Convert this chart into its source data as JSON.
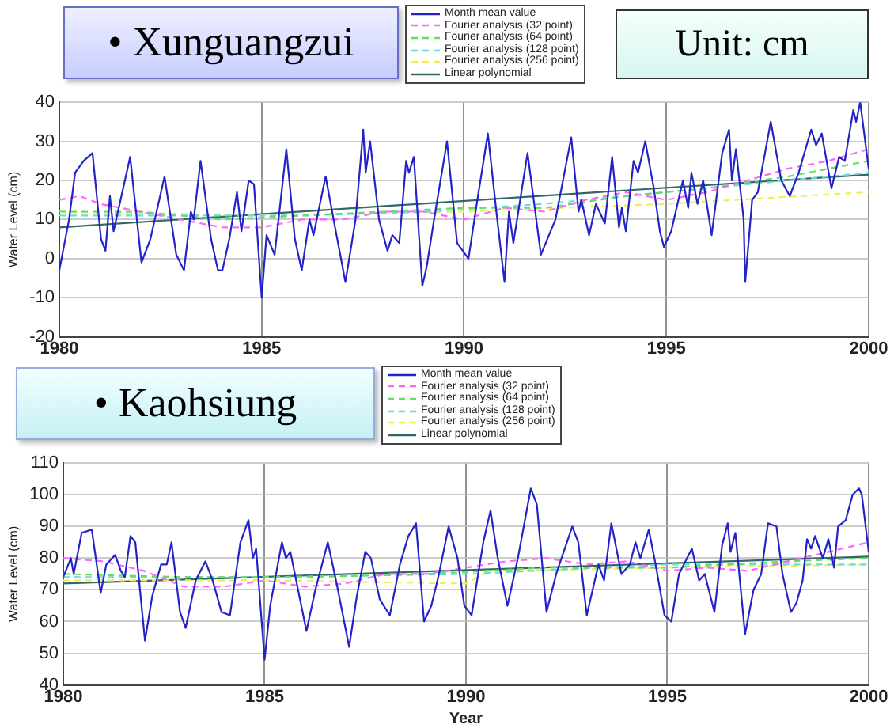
{
  "chart_data": [
    {
      "type": "line",
      "title": "• Xunguangzui",
      "annotations": [
        "Unit: cm"
      ],
      "ylabel": "Water Level (cm)",
      "xlim": [
        1980,
        2000
      ],
      "xticks": [
        1980,
        1985,
        1990,
        1995,
        2000
      ],
      "ylim": [
        -20,
        40
      ],
      "yticks": [
        -20,
        -10,
        0,
        10,
        20,
        30,
        40
      ],
      "grid": true,
      "legend": "top",
      "marker": "none",
      "series": [
        {
          "name": "Month mean value",
          "color": "#2323c8",
          "line_style": "solid",
          "x": [
            1980,
            1980.24,
            1980.39,
            1980.6,
            1980.82,
            1981.03,
            1981.14,
            1981.25,
            1981.34,
            1981.75,
            1982.03,
            1982.25,
            1982.6,
            1982.89,
            1983.08,
            1983.25,
            1983.32,
            1983.49,
            1983.75,
            1983.92,
            1984.03,
            1984.2,
            1984.39,
            1984.5,
            1984.68,
            1984.81,
            1985,
            1985.12,
            1985.32,
            1985.61,
            1985.82,
            1985.99,
            1986.18,
            1986.28,
            1986.58,
            1986.85,
            1987.07,
            1987.32,
            1987.51,
            1987.57,
            1987.68,
            1987.9,
            1988.11,
            1988.23,
            1988.4,
            1988.57,
            1988.64,
            1988.76,
            1988.97,
            1989.08,
            1989.26,
            1989.58,
            1989.83,
            1990.11,
            1990.33,
            1990.59,
            1990.8,
            1991,
            1991.11,
            1991.22,
            1991.57,
            1991.9,
            1992.26,
            1992.65,
            1992.83,
            1992.9,
            1993.09,
            1993.26,
            1993.48,
            1993.66,
            1993.83,
            1993.9,
            1994,
            1994.19,
            1994.3,
            1994.48,
            1994.69,
            1994.84,
            1994.94,
            1995.12,
            1995.41,
            1995.54,
            1995.62,
            1995.77,
            1995.91,
            1996.12,
            1996.38,
            1996.55,
            1996.62,
            1996.72,
            1996.91,
            1996.95,
            1997.12,
            1997.26,
            1997.58,
            1997.84,
            1998.05,
            1998.27,
            1998.58,
            1998.7,
            1998.84,
            1999.08,
            1999.27,
            1999.41,
            1999.62,
            1999.69,
            1999.79,
            2000
          ],
          "values": [
            -3,
            10,
            22,
            25,
            27,
            5,
            2,
            16,
            7,
            26,
            -1,
            5,
            21,
            1,
            -3,
            12,
            10,
            25,
            5,
            -3,
            -3,
            5,
            17,
            7,
            20,
            19,
            -10,
            6,
            1,
            28,
            5,
            -3,
            10,
            6,
            21,
            6,
            -6,
            10,
            33,
            22,
            30,
            10,
            2,
            6,
            4,
            25,
            22,
            26,
            -7,
            -2,
            10,
            30,
            4,
            0,
            15,
            32,
            12,
            -6,
            12,
            4,
            27,
            1,
            10,
            31,
            12,
            15,
            6,
            14,
            9,
            26,
            8,
            13,
            7,
            25,
            22,
            30,
            18,
            7,
            3,
            7,
            20,
            13,
            22,
            14,
            20,
            6,
            27,
            33,
            20,
            28,
            10,
            -6,
            15,
            17,
            35,
            20,
            16,
            22,
            33,
            29,
            32,
            18,
            26,
            25,
            38,
            35,
            40,
            23
          ]
        },
        {
          "name": "Fourier analysis (32 point)",
          "color": "#ff66ff",
          "line_style": "dashed",
          "x": [
            1980,
            1980.5,
            1981,
            1982,
            1983,
            1984,
            1985,
            1986,
            1987,
            1988,
            1989,
            1990,
            1991,
            1992,
            1993,
            1994,
            1995,
            1996,
            1997,
            1998,
            1999,
            2000
          ],
          "values": [
            15,
            16,
            14,
            12,
            10,
            8,
            8,
            10,
            10,
            12,
            12,
            10,
            13,
            12,
            15,
            17,
            15,
            17,
            20,
            23,
            25,
            28
          ]
        },
        {
          "name": "Fourier analysis (64 point)",
          "color": "#66dd66",
          "line_style": "dashed",
          "x": [
            1980,
            1982,
            1984,
            1986,
            1988,
            1990,
            1992,
            1994,
            1996,
            1998,
            2000
          ],
          "values": [
            12,
            12,
            10,
            11,
            12,
            13,
            13,
            16,
            18,
            21,
            25
          ]
        },
        {
          "name": "Fourier analysis (128 point)",
          "color": "#66dddd",
          "line_style": "dashed",
          "x": [
            1980,
            1983,
            1986,
            1989,
            1992,
            1995,
            1998,
            2000
          ],
          "values": [
            11,
            11,
            11,
            12,
            14,
            17,
            20,
            22
          ]
        },
        {
          "name": "Fourier analysis (256 point)",
          "color": "#eeee55",
          "line_style": "dashed",
          "x": [
            1980,
            1985,
            1990,
            1995,
            2000
          ],
          "values": [
            12,
            11,
            12,
            14,
            17
          ]
        },
        {
          "name": "Linear polynomial",
          "color": "#336666",
          "line_style": "solid",
          "x": [
            1980,
            2000
          ],
          "values": [
            8,
            21.5
          ]
        }
      ]
    },
    {
      "type": "line",
      "title": "• Kaohsiung",
      "xlabel": "Year",
      "ylabel": "Water Level (cm)",
      "xlim": [
        1980,
        2000
      ],
      "xticks": [
        1980,
        1985,
        1990,
        1995,
        2000
      ],
      "ylim": [
        40,
        110
      ],
      "yticks": [
        40,
        50,
        60,
        70,
        80,
        90,
        100,
        110
      ],
      "grid": true,
      "legend": "top",
      "marker": "none",
      "series": [
        {
          "name": "Month mean value",
          "color": "#2323c8",
          "line_style": "solid",
          "x": [
            1980,
            1980.19,
            1980.26,
            1980.46,
            1980.71,
            1980.93,
            1981.07,
            1981.29,
            1981.43,
            1981.53,
            1981.67,
            1981.79,
            1982.03,
            1982.21,
            1982.43,
            1982.57,
            1982.69,
            1982.9,
            1983.04,
            1983.29,
            1983.53,
            1983.71,
            1983.93,
            1984.14,
            1984.4,
            1984.6,
            1984.71,
            1984.79,
            1985,
            1985.14,
            1985.43,
            1985.53,
            1985.64,
            1986.04,
            1986.26,
            1986.57,
            1986.79,
            1987.1,
            1987.29,
            1987.5,
            1987.64,
            1987.86,
            1988.11,
            1988.36,
            1988.57,
            1988.76,
            1988.96,
            1989.14,
            1989.33,
            1989.57,
            1989.79,
            1989.96,
            1990.14,
            1990.43,
            1990.61,
            1990.79,
            1991.03,
            1991.29,
            1991.61,
            1991.76,
            1992,
            1992.24,
            1992.64,
            1992.79,
            1993,
            1993.29,
            1993.43,
            1993.61,
            1993.86,
            1994.07,
            1994.21,
            1994.33,
            1994.54,
            1994.71,
            1994.93,
            1995.1,
            1995.29,
            1995.61,
            1995.79,
            1995.93,
            1996.17,
            1996.36,
            1996.5,
            1996.57,
            1996.69,
            1996.93,
            1997.14,
            1997.33,
            1997.5,
            1997.71,
            1997.86,
            1998.07,
            1998.21,
            1998.36,
            1998.47,
            1998.57,
            1998.67,
            1998.86,
            1999,
            1999.14,
            1999.24,
            1999.43,
            1999.6,
            1999.76,
            1999.83,
            2000
          ],
          "values": [
            74,
            80,
            75,
            88,
            89,
            69,
            78,
            81,
            76,
            74,
            87,
            85,
            54,
            68,
            78,
            78,
            85,
            63,
            58,
            73,
            79,
            73,
            63,
            62,
            85,
            92,
            80,
            83,
            48,
            65,
            85,
            80,
            82,
            57,
            70,
            85,
            72,
            52,
            68,
            82,
            80,
            67,
            62,
            78,
            87,
            91,
            60,
            65,
            75,
            90,
            80,
            65,
            62,
            85,
            95,
            80,
            65,
            80,
            102,
            97,
            63,
            75,
            90,
            85,
            62,
            78,
            73,
            91,
            75,
            78,
            85,
            80,
            89,
            78,
            62,
            60,
            75,
            83,
            73,
            75,
            63,
            84,
            91,
            82,
            88,
            56,
            70,
            75,
            91,
            90,
            75,
            63,
            66,
            73,
            86,
            83,
            87,
            80,
            86,
            77,
            90,
            92,
            100,
            102,
            100,
            82
          ]
        },
        {
          "name": "Fourier analysis (32 point)",
          "color": "#ff66ff",
          "line_style": "dashed",
          "x": [
            1980,
            1981,
            1982,
            1983,
            1984,
            1985,
            1986,
            1987,
            1988,
            1989,
            1990,
            1991,
            1992,
            1993,
            1994,
            1995,
            1996,
            1997,
            1998,
            1999,
            2000
          ],
          "values": [
            80,
            79,
            76,
            71,
            71,
            73,
            71,
            72,
            75,
            75,
            77,
            79,
            80,
            78,
            79,
            76,
            77,
            76,
            79,
            82,
            85
          ]
        },
        {
          "name": "Fourier analysis (64 point)",
          "color": "#66dd66",
          "line_style": "dashed",
          "x": [
            1980,
            1983,
            1986,
            1989,
            1992,
            1995,
            1998,
            2000
          ],
          "values": [
            75,
            74,
            74,
            75,
            77,
            77,
            79,
            80
          ]
        },
        {
          "name": "Fourier analysis (128 point)",
          "color": "#66dddd",
          "line_style": "dashed",
          "x": [
            1980,
            1985,
            1990,
            1995,
            2000
          ],
          "values": [
            74,
            74,
            75,
            78,
            78
          ]
        },
        {
          "name": "Fourier analysis (256 point)",
          "color": "#eeee55",
          "line_style": "dashed",
          "x": [
            1980,
            1985,
            1990,
            1990.6,
            1995,
            2000
          ],
          "values": [
            73,
            73,
            72,
            76,
            77,
            78
          ]
        },
        {
          "name": "Linear polynomial",
          "color": "#336666",
          "line_style": "solid",
          "x": [
            1980,
            2000
          ],
          "values": [
            72,
            80.5
          ]
        }
      ]
    }
  ]
}
